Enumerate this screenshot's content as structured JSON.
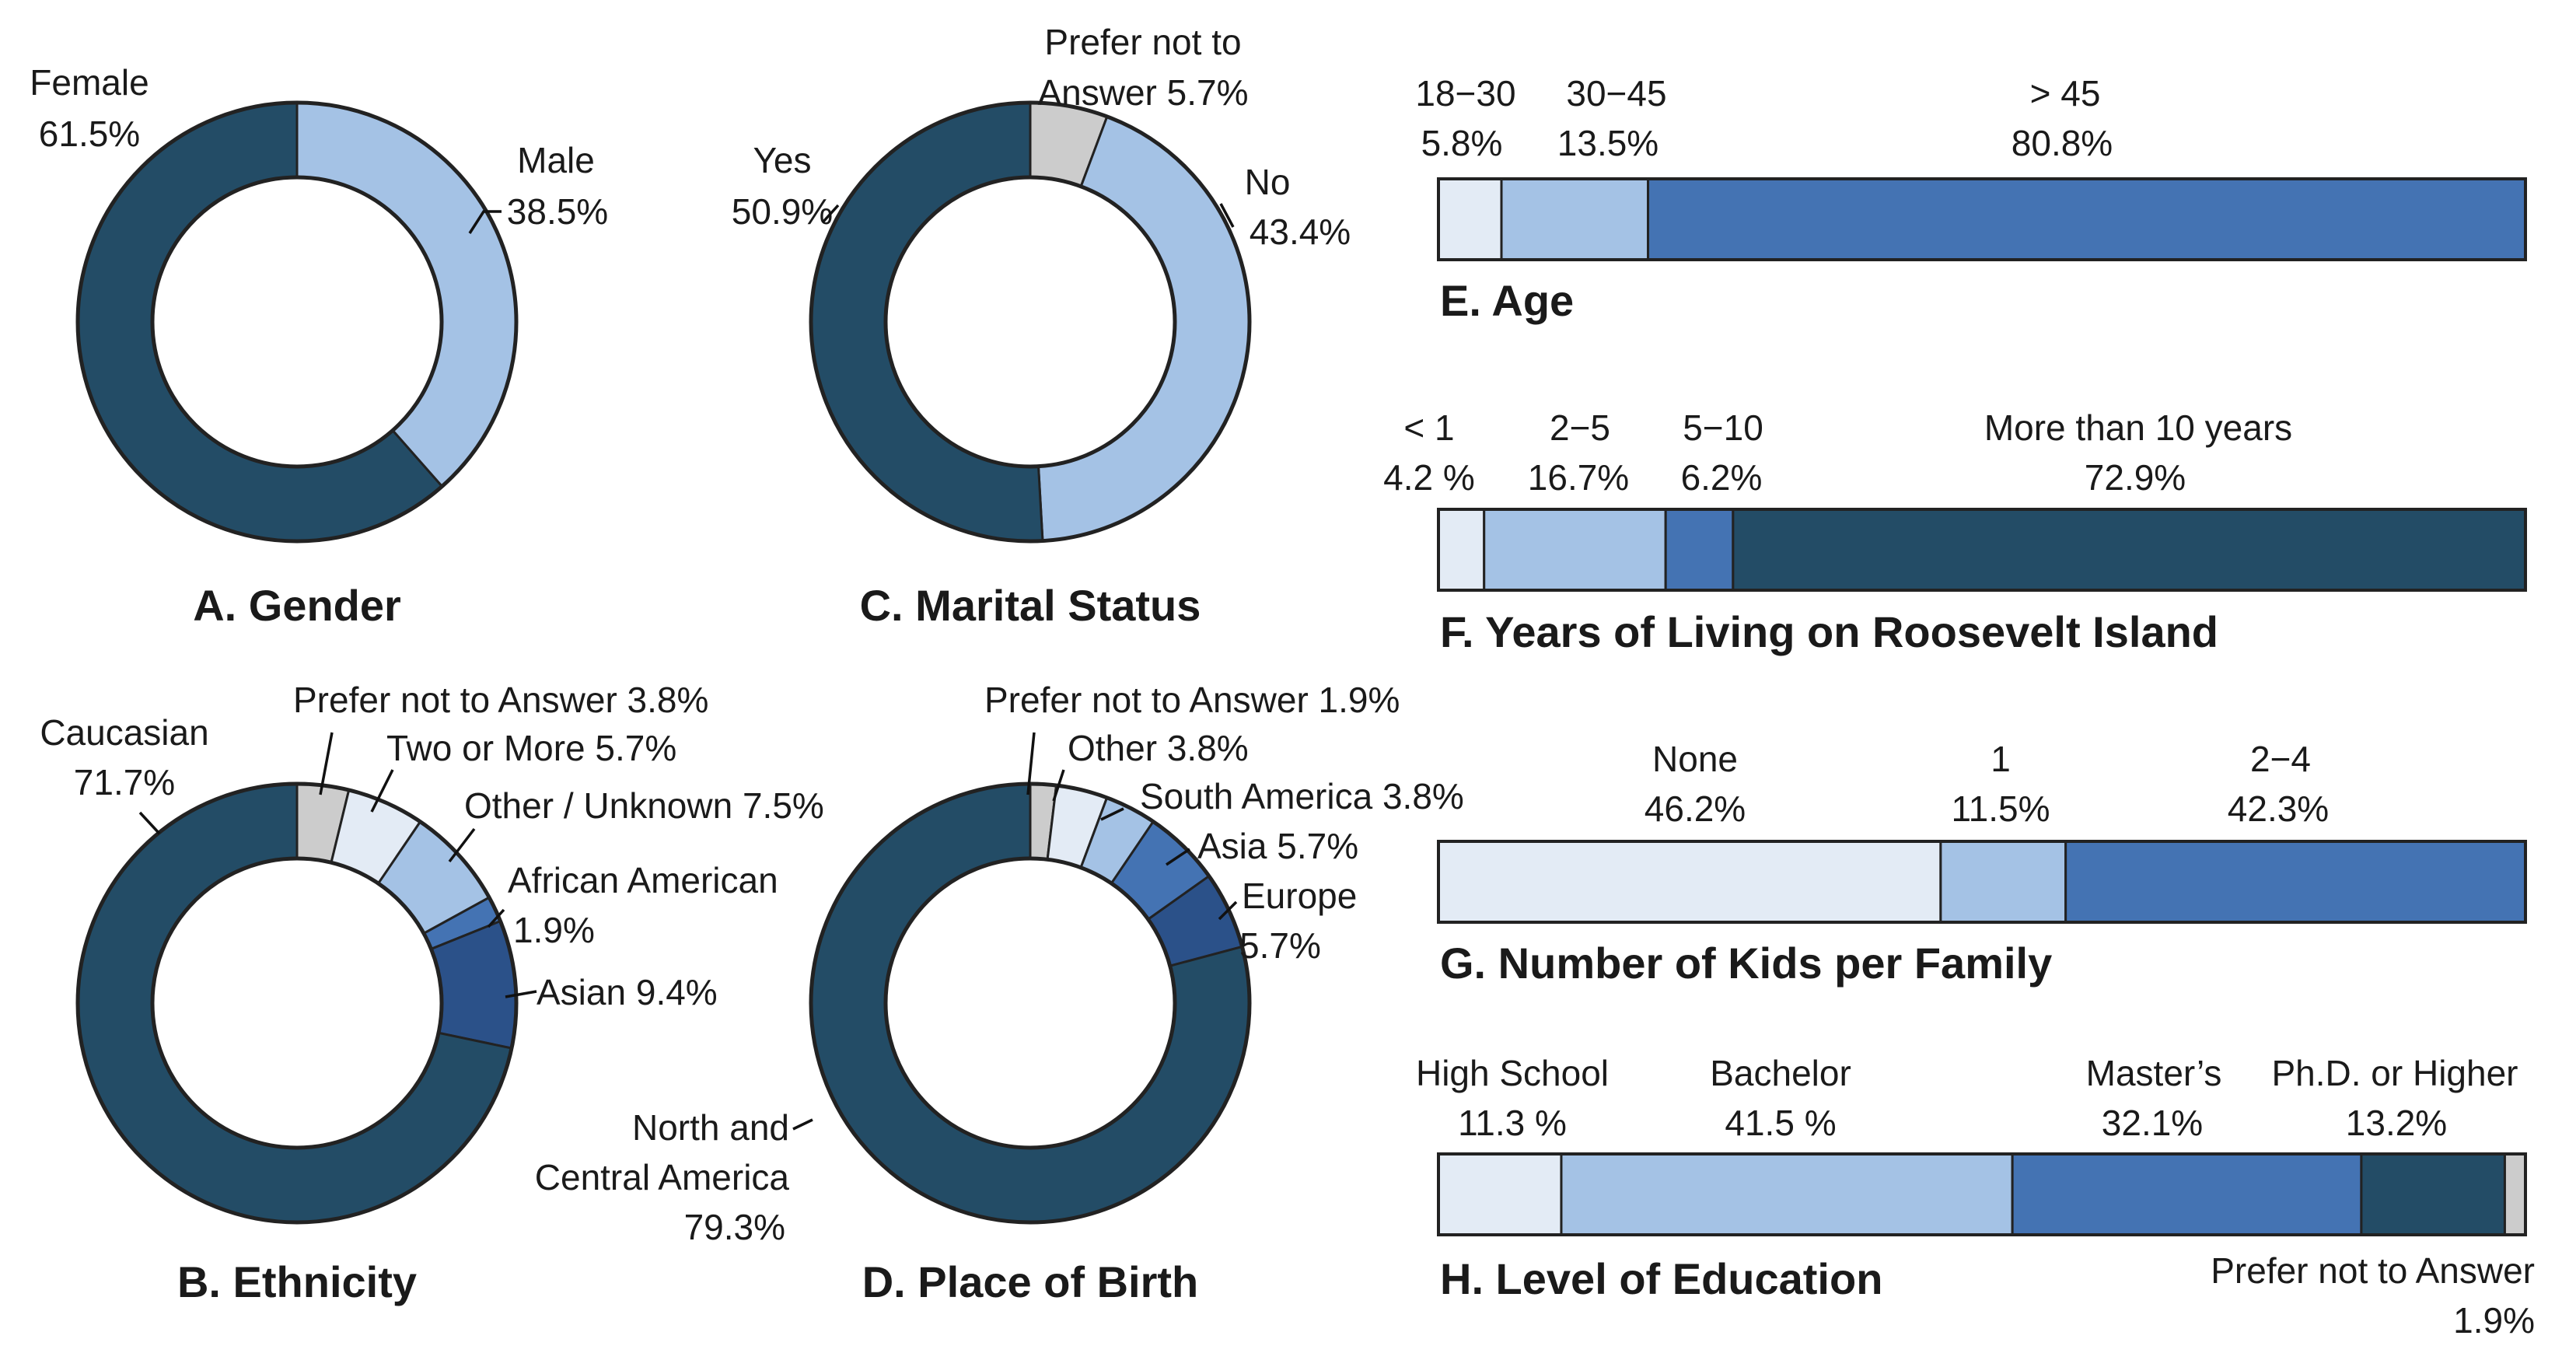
{
  "colors": {
    "prefer_not": "#cccccc",
    "lightest": "#e3ebf5",
    "light": "#a4c2e5",
    "mid": "#4473b3",
    "deep": "#2b5189",
    "dark": "#234c66",
    "outline": "#222222"
  },
  "chart_data": [
    {
      "id": "A",
      "type": "pie",
      "title": "A. Gender",
      "slices": [
        {
          "name": "Male",
          "value": 38.5,
          "pct": "38.5%",
          "color": "#a4c2e5"
        },
        {
          "name": "Female",
          "value": 61.5,
          "pct": "61.5%",
          "color": "#234c66"
        }
      ]
    },
    {
      "id": "C",
      "type": "pie",
      "title": "C. Marital Status",
      "slices": [
        {
          "name": "Prefer not to Answer",
          "value": 5.7,
          "pct": "5.7%",
          "color": "#cccccc"
        },
        {
          "name": "No",
          "value": 43.4,
          "pct": "43.4%",
          "color": "#a4c2e5"
        },
        {
          "name": "Yes",
          "value": 50.9,
          "pct": "50.9%",
          "color": "#234c66"
        }
      ]
    },
    {
      "id": "B",
      "type": "pie",
      "title": "B. Ethnicity",
      "slices": [
        {
          "name": "Prefer not to Answer",
          "value": 3.8,
          "pct": "3.8%",
          "color": "#cccccc"
        },
        {
          "name": "Two or More",
          "value": 5.7,
          "pct": "5.7%",
          "color": "#e3ebf5"
        },
        {
          "name": "Other / Unknown",
          "value": 7.5,
          "pct": "7.5%",
          "color": "#a4c2e5"
        },
        {
          "name": "African American",
          "value": 1.9,
          "pct": "1.9%",
          "color": "#4473b3"
        },
        {
          "name": "Asian",
          "value": 9.4,
          "pct": "9.4%",
          "color": "#2b5189"
        },
        {
          "name": "Caucasian",
          "value": 71.7,
          "pct": "71.7%",
          "color": "#234c66"
        }
      ]
    },
    {
      "id": "D",
      "type": "pie",
      "title": "D. Place of Birth",
      "slices": [
        {
          "name": "Prefer not to Answer",
          "value": 1.9,
          "pct": "1.9%",
          "color": "#cccccc"
        },
        {
          "name": "Other",
          "value": 3.8,
          "pct": "3.8%",
          "color": "#e3ebf5"
        },
        {
          "name": "South America",
          "value": 3.8,
          "pct": "3.8%",
          "color": "#a4c2e5"
        },
        {
          "name": "Asia",
          "value": 5.7,
          "pct": "5.7%",
          "color": "#4473b3"
        },
        {
          "name": "Europe",
          "value": 5.7,
          "pct": "5.7%",
          "color": "#2b5189"
        },
        {
          "name": "North and Central America",
          "value": 79.3,
          "pct": "79.3%",
          "color": "#234c66"
        }
      ]
    },
    {
      "id": "E",
      "type": "bar",
      "orientation": "stacked-horizontal",
      "title": "E. Age",
      "segments": [
        {
          "name": "18−30",
          "value": 5.8,
          "pct": "5.8%",
          "color": "#e3ebf5"
        },
        {
          "name": "30−45",
          "value": 13.5,
          "pct": "13.5%",
          "color": "#a4c2e5"
        },
        {
          "name": "> 45",
          "value": 80.8,
          "pct": "80.8%",
          "color": "#4473b3"
        }
      ]
    },
    {
      "id": "F",
      "type": "bar",
      "orientation": "stacked-horizontal",
      "title": "F. Years of Living on Roosevelt Island",
      "segments": [
        {
          "name": "< 1",
          "value": 4.2,
          "pct": "4.2 %",
          "color": "#e3ebf5"
        },
        {
          "name": "2−5",
          "value": 16.7,
          "pct": "16.7%",
          "color": "#a4c2e5"
        },
        {
          "name": "5−10",
          "value": 6.2,
          "pct": "6.2%",
          "color": "#4473b3"
        },
        {
          "name": "More than 10 years",
          "value": 72.9,
          "pct": "72.9%",
          "color": "#234c66"
        }
      ]
    },
    {
      "id": "G",
      "type": "bar",
      "orientation": "stacked-horizontal",
      "title": "G. Number of Kids per Family",
      "segments": [
        {
          "name": "None",
          "value": 46.2,
          "pct": "46.2%",
          "color": "#e3ebf5"
        },
        {
          "name": "1",
          "value": 11.5,
          "pct": "11.5%",
          "color": "#a4c2e5"
        },
        {
          "name": "2−4",
          "value": 42.3,
          "pct": "42.3%",
          "color": "#4473b3"
        }
      ]
    },
    {
      "id": "H",
      "type": "bar",
      "orientation": "stacked-horizontal",
      "title": "H. Level of Education",
      "segments": [
        {
          "name": "High School",
          "value": 11.3,
          "pct": "11.3 %",
          "color": "#e3ebf5"
        },
        {
          "name": "Bachelor",
          "value": 41.5,
          "pct": "41.5 %",
          "color": "#a4c2e5"
        },
        {
          "name": "Master’s",
          "value": 32.1,
          "pct": "32.1%",
          "color": "#4473b3"
        },
        {
          "name": "Ph.D. or Higher",
          "value": 13.2,
          "pct": "13.2%",
          "color": "#234c66"
        },
        {
          "name": "Prefer not to Answer",
          "value": 1.9,
          "pct": "1.9%",
          "color": "#cccccc"
        }
      ]
    }
  ]
}
